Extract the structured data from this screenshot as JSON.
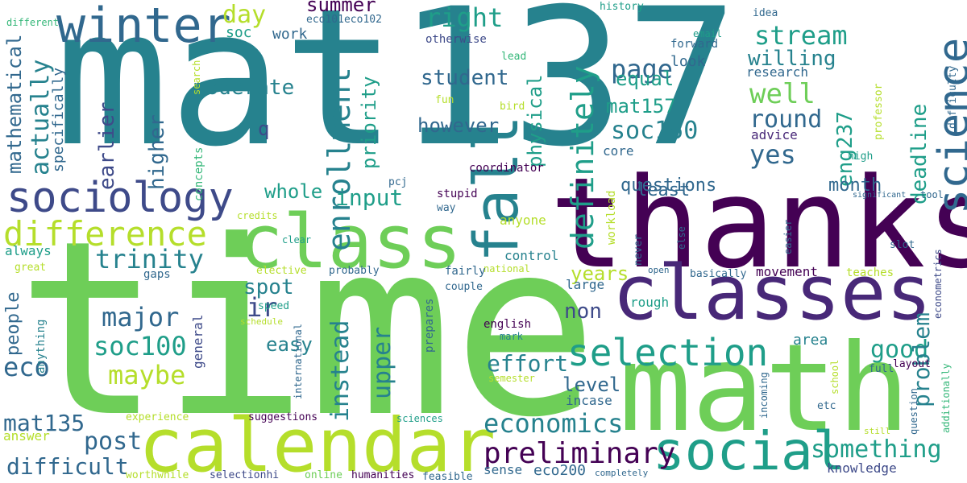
{
  "palette": {
    "dark_purple": "#440154",
    "indigo": "#482878",
    "slate_blue": "#3e4a89",
    "steel_blue": "#31688e",
    "teal_blue": "#26828e",
    "teal_green": "#1f9e89",
    "green": "#35b779",
    "light_green": "#6ece58",
    "yellow_green": "#b5de2b",
    "yellow": "#fde725"
  },
  "words": [
    {
      "text": "time"
    },
    {
      "text": "mat137"
    },
    {
      "text": "thanks"
    },
    {
      "text": "math"
    },
    {
      "text": "calendar"
    },
    {
      "text": "class"
    },
    {
      "text": "classes"
    },
    {
      "text": "fall"
    },
    {
      "text": "social"
    },
    {
      "text": "sociology"
    },
    {
      "text": "winter"
    },
    {
      "text": "science"
    },
    {
      "text": "difference"
    },
    {
      "text": "selection"
    },
    {
      "text": "preliminary"
    },
    {
      "text": "enrollment"
    },
    {
      "text": "definitely"
    },
    {
      "text": "economics"
    },
    {
      "text": "trinity"
    },
    {
      "text": "something"
    },
    {
      "text": "major"
    },
    {
      "text": "soc100"
    },
    {
      "text": "maybe"
    },
    {
      "text": "actually"
    },
    {
      "text": "stream"
    },
    {
      "text": "right"
    },
    {
      "text": "page"
    },
    {
      "text": "well"
    },
    {
      "text": "soc150"
    },
    {
      "text": "mat157"
    },
    {
      "text": "round"
    },
    {
      "text": "yes"
    },
    {
      "text": "input"
    },
    {
      "text": "post"
    },
    {
      "text": "difficult"
    },
    {
      "text": "mat135"
    },
    {
      "text": "eco"
    },
    {
      "text": "ir"
    },
    {
      "text": "good"
    },
    {
      "text": "effort"
    },
    {
      "text": "instead"
    },
    {
      "text": "upper"
    },
    {
      "text": "problem"
    },
    {
      "text": "eng237"
    },
    {
      "text": "deadline"
    },
    {
      "text": "earlier"
    },
    {
      "text": "higher"
    },
    {
      "text": "mathematical"
    },
    {
      "text": "priority"
    },
    {
      "text": "physical"
    },
    {
      "text": "however"
    },
    {
      "text": "student"
    },
    {
      "text": "moderate"
    },
    {
      "text": "summer"
    },
    {
      "text": "day"
    },
    {
      "text": "willing"
    },
    {
      "text": "equal"
    },
    {
      "text": "whole"
    },
    {
      "text": "spot"
    },
    {
      "text": "easy"
    },
    {
      "text": "level"
    },
    {
      "text": "non"
    },
    {
      "text": "years"
    },
    {
      "text": "month"
    },
    {
      "text": "questions"
    },
    {
      "text": "least"
    },
    {
      "text": "people"
    },
    {
      "text": "specifically"
    },
    {
      "text": "q"
    },
    {
      "text": "soc"
    },
    {
      "text": "work"
    },
    {
      "text": "look"
    },
    {
      "text": "research"
    },
    {
      "text": "advice"
    },
    {
      "text": "core"
    },
    {
      "text": "forward"
    },
    {
      "text": "email"
    },
    {
      "text": "idea"
    },
    {
      "text": "history"
    },
    {
      "text": "eco101eco102"
    },
    {
      "text": "otherwise"
    },
    {
      "text": "lead"
    },
    {
      "text": "fun"
    },
    {
      "text": "bird"
    },
    {
      "text": "different"
    },
    {
      "text": "search"
    },
    {
      "text": "concepts"
    },
    {
      "text": "professor"
    },
    {
      "text": "difficulty"
    },
    {
      "text": "high"
    },
    {
      "text": "coordinator"
    },
    {
      "text": "pcj"
    },
    {
      "text": "stupid"
    },
    {
      "text": "way"
    },
    {
      "text": "anyone"
    },
    {
      "text": "credits"
    },
    {
      "text": "clear"
    },
    {
      "text": "always"
    },
    {
      "text": "great"
    },
    {
      "text": "gaps"
    },
    {
      "text": "elective"
    },
    {
      "text": "probably"
    },
    {
      "text": "national"
    },
    {
      "text": "control"
    },
    {
      "text": "fairly"
    },
    {
      "text": "couple"
    },
    {
      "text": "large"
    },
    {
      "text": "movement"
    },
    {
      "text": "basically"
    },
    {
      "text": "teaches"
    },
    {
      "text": "workload"
    },
    {
      "text": "never"
    },
    {
      "text": "else"
    },
    {
      "text": "easier"
    },
    {
      "text": "slot"
    },
    {
      "text": "open"
    },
    {
      "text": "econometrics"
    },
    {
      "text": "additionally"
    },
    {
      "text": "significant"
    },
    {
      "text": "tool"
    },
    {
      "text": "rough"
    },
    {
      "text": "speed"
    },
    {
      "text": "schedule"
    },
    {
      "text": "anything"
    },
    {
      "text": "general"
    },
    {
      "text": "international"
    },
    {
      "text": "prepares"
    },
    {
      "text": "english"
    },
    {
      "text": "mark"
    },
    {
      "text": "semester"
    },
    {
      "text": "area"
    },
    {
      "text": "full"
    },
    {
      "text": "layout"
    },
    {
      "text": "school"
    },
    {
      "text": "incoming"
    },
    {
      "text": "etc"
    },
    {
      "text": "question"
    },
    {
      "text": "still"
    },
    {
      "text": "incase"
    },
    {
      "text": "experience"
    },
    {
      "text": "suggestions"
    },
    {
      "text": "sciences"
    },
    {
      "text": "answer"
    },
    {
      "text": "worthwhile"
    },
    {
      "text": "selectionhi"
    },
    {
      "text": "online"
    },
    {
      "text": "humanities"
    },
    {
      "text": "feasible"
    },
    {
      "text": "sense"
    },
    {
      "text": "eco200"
    },
    {
      "text": "completely"
    },
    {
      "text": "knowledge"
    }
  ]
}
